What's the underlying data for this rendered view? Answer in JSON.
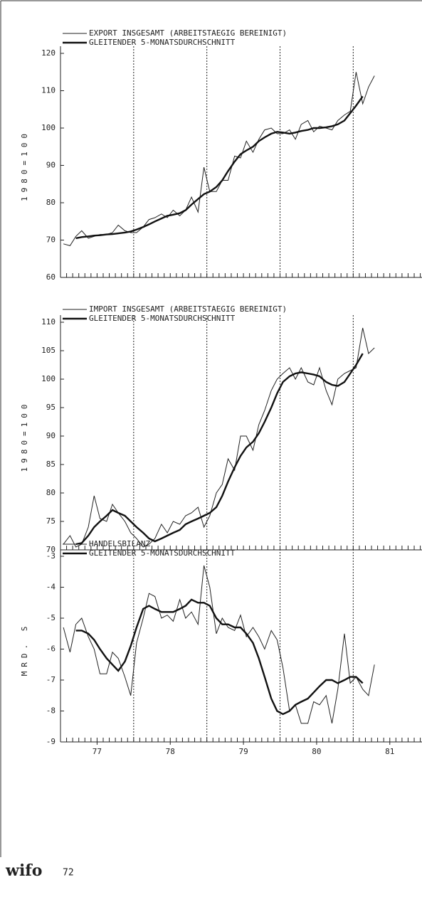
{
  "chart_data": [
    {
      "type": "line",
      "ylabel": "1980=100",
      "x": [
        76.54,
        76.63,
        76.71,
        76.79,
        76.88,
        76.96,
        77.04,
        77.13,
        77.21,
        77.29,
        77.38,
        77.46,
        77.54,
        77.63,
        77.71,
        77.79,
        77.88,
        77.96,
        78.04,
        78.13,
        78.21,
        78.29,
        78.38,
        78.46,
        78.54,
        78.63,
        78.71,
        78.79,
        78.88,
        78.96,
        79.04,
        79.13,
        79.21,
        79.29,
        79.38,
        79.46,
        79.54,
        79.63,
        79.71,
        79.79,
        79.88,
        79.96,
        80.04,
        80.13,
        80.21,
        80.29,
        80.38,
        80.46,
        80.54,
        80.63,
        80.71,
        80.79
      ],
      "series": [
        {
          "name": "EXPORT INSGESAMT (ARBEITSTAEGIG BEREINIGT)",
          "color": "#222",
          "width": 1,
          "values": [
            69,
            68.5,
            71,
            72.5,
            70.5,
            71,
            71.5,
            71.5,
            72,
            74,
            72.5,
            72,
            72,
            73.5,
            75.5,
            76,
            77,
            76,
            78,
            76.5,
            78,
            81.5,
            77.5,
            89.5,
            83,
            83,
            86,
            86,
            92.5,
            92,
            96.5,
            93.5,
            97,
            99.5,
            100,
            98.5,
            98.5,
            99.5,
            97,
            101,
            102,
            99,
            100.5,
            100,
            99.5,
            102,
            103.5,
            104.5,
            115,
            106.5,
            111,
            114
          ]
        },
        {
          "name": "GLEITENDER 5-MONATSDURCHSCHNITT",
          "color": "#111",
          "width": 2.4,
          "values": [
            null,
            null,
            70.5,
            70.8,
            71,
            71.2,
            71.3,
            71.5,
            71.6,
            71.8,
            72,
            72.3,
            72.8,
            73.5,
            74.2,
            75,
            75.8,
            76.5,
            76.8,
            77.2,
            78,
            79.5,
            81,
            82.3,
            83,
            84.2,
            86,
            88.5,
            91,
            93,
            94,
            95,
            96.5,
            97.5,
            98.5,
            99,
            98.8,
            98.5,
            98.8,
            99.2,
            99.5,
            100,
            100,
            100.2,
            100.5,
            101,
            102,
            104,
            106,
            108.5,
            null,
            null
          ]
        }
      ],
      "xlim": [
        76.5,
        81.44
      ],
      "ylim": [
        60,
        120
      ],
      "yticks": [
        60,
        70,
        80,
        90,
        100,
        110,
        120
      ],
      "vlines": [
        77.5,
        78.5,
        79.5,
        80.5
      ]
    },
    {
      "type": "line",
      "ylabel": "1980=100",
      "x": [
        76.54,
        76.63,
        76.71,
        76.79,
        76.88,
        76.96,
        77.04,
        77.13,
        77.21,
        77.29,
        77.38,
        77.46,
        77.54,
        77.63,
        77.71,
        77.79,
        77.88,
        77.96,
        78.04,
        78.13,
        78.21,
        78.29,
        78.38,
        78.46,
        78.54,
        78.63,
        78.71,
        78.79,
        78.88,
        78.96,
        79.04,
        79.13,
        79.21,
        79.29,
        79.38,
        79.46,
        79.54,
        79.63,
        79.71,
        79.79,
        79.88,
        79.96,
        80.04,
        80.13,
        80.21,
        80.29,
        80.38,
        80.46,
        80.54,
        80.63,
        80.71,
        80.79
      ],
      "series": [
        {
          "name": "IMPORT INSGESAMT (ARBEITSTAEGIG BEREINIGT)",
          "color": "#222",
          "width": 1,
          "values": [
            71,
            72.5,
            70.5,
            71,
            74,
            79.5,
            75.5,
            75,
            78,
            76.5,
            75,
            73,
            72,
            70.5,
            71,
            72,
            74.5,
            73,
            75,
            74.5,
            76,
            76.5,
            77.5,
            74,
            76,
            80,
            81.5,
            86,
            84,
            90,
            90,
            87.5,
            92,
            94.5,
            98,
            100,
            101,
            102,
            100,
            102,
            99.5,
            99,
            102,
            98,
            95.5,
            100,
            101,
            101.5,
            102,
            109,
            104.5,
            105.5
          ]
        },
        {
          "name": "GLEITENDER 5-MONATSDURCHSCHNITT",
          "color": "#111",
          "width": 2.4,
          "values": [
            null,
            null,
            71,
            71.2,
            72.5,
            74,
            75,
            76,
            77,
            76.5,
            76,
            75,
            74,
            73,
            72,
            71.5,
            72,
            72.5,
            73,
            73.5,
            74.5,
            75,
            75.5,
            76,
            76.5,
            77.5,
            79.5,
            82,
            84.5,
            86.5,
            88,
            89,
            90.5,
            92.5,
            95,
            97.5,
            99.5,
            100.5,
            101,
            101.2,
            101,
            100.8,
            100.5,
            99.5,
            99,
            98.8,
            99.5,
            101,
            102.5,
            104.5,
            null,
            null
          ]
        }
      ],
      "xlim": [
        76.5,
        81.44
      ],
      "ylim": [
        70,
        110
      ],
      "yticks": [
        70,
        75,
        80,
        85,
        90,
        95,
        100,
        105,
        110
      ],
      "vlines": [
        77.5,
        78.5,
        79.5,
        80.5
      ]
    },
    {
      "type": "line",
      "ylabel": "MRD. S",
      "x": [
        76.54,
        76.63,
        76.71,
        76.79,
        76.88,
        76.96,
        77.04,
        77.13,
        77.21,
        77.29,
        77.38,
        77.46,
        77.54,
        77.63,
        77.71,
        77.79,
        77.88,
        77.96,
        78.04,
        78.13,
        78.21,
        78.29,
        78.38,
        78.46,
        78.54,
        78.63,
        78.71,
        78.79,
        78.88,
        78.96,
        79.04,
        79.13,
        79.21,
        79.29,
        79.38,
        79.46,
        79.54,
        79.63,
        79.71,
        79.79,
        79.88,
        79.96,
        80.04,
        80.13,
        80.21,
        80.29,
        80.38,
        80.46,
        80.54,
        80.63,
        80.71,
        80.79
      ],
      "series": [
        {
          "name": "HANDELSBILANZ",
          "color": "#222",
          "width": 1,
          "values": [
            -5.3,
            -6.1,
            -5.2,
            -5.0,
            -5.6,
            -6.0,
            -6.8,
            -6.8,
            -6.1,
            -6.3,
            -6.9,
            -7.5,
            -5.8,
            -5.0,
            -4.2,
            -4.3,
            -5.0,
            -4.9,
            -5.1,
            -4.4,
            -5.0,
            -4.8,
            -5.2,
            -3.3,
            -4.0,
            -5.5,
            -5.0,
            -5.3,
            -5.4,
            -4.9,
            -5.6,
            -5.3,
            -5.6,
            -6.0,
            -5.4,
            -5.7,
            -6.6,
            -8.0,
            -7.8,
            -8.4,
            -8.4,
            -7.7,
            -7.8,
            -7.5,
            -8.4,
            -7.3,
            -5.5,
            -7.1,
            -6.9,
            -7.3,
            -7.5,
            -6.5
          ]
        },
        {
          "name": "GLEITENDER 5-MONATSDURCHSCHNITT",
          "color": "#111",
          "width": 2.4,
          "values": [
            null,
            null,
            -5.4,
            -5.4,
            -5.5,
            -5.7,
            -6.0,
            -6.3,
            -6.5,
            -6.7,
            -6.4,
            -5.9,
            -5.3,
            -4.7,
            -4.6,
            -4.7,
            -4.8,
            -4.8,
            -4.8,
            -4.7,
            -4.6,
            -4.4,
            -4.5,
            -4.5,
            -4.6,
            -5.0,
            -5.2,
            -5.2,
            -5.3,
            -5.3,
            -5.5,
            -5.8,
            -6.3,
            -6.9,
            -7.6,
            -8.0,
            -8.1,
            -8.0,
            -7.8,
            -7.7,
            -7.6,
            -7.4,
            -7.2,
            -7.0,
            -7.0,
            -7.1,
            -7.0,
            -6.9,
            -6.9,
            -7.1,
            null,
            null
          ]
        }
      ],
      "xlim": [
        76.5,
        81.44
      ],
      "ylim": [
        -9,
        -3
      ],
      "yticks": [
        -9,
        -8,
        -7,
        -6,
        -5,
        -4,
        -3
      ],
      "xticks": [
        77,
        78,
        79,
        80,
        81
      ],
      "vlines": [
        77.5,
        78.5,
        79.5,
        80.5
      ]
    }
  ],
  "footer": {
    "logo": "wifo",
    "page": "72"
  }
}
